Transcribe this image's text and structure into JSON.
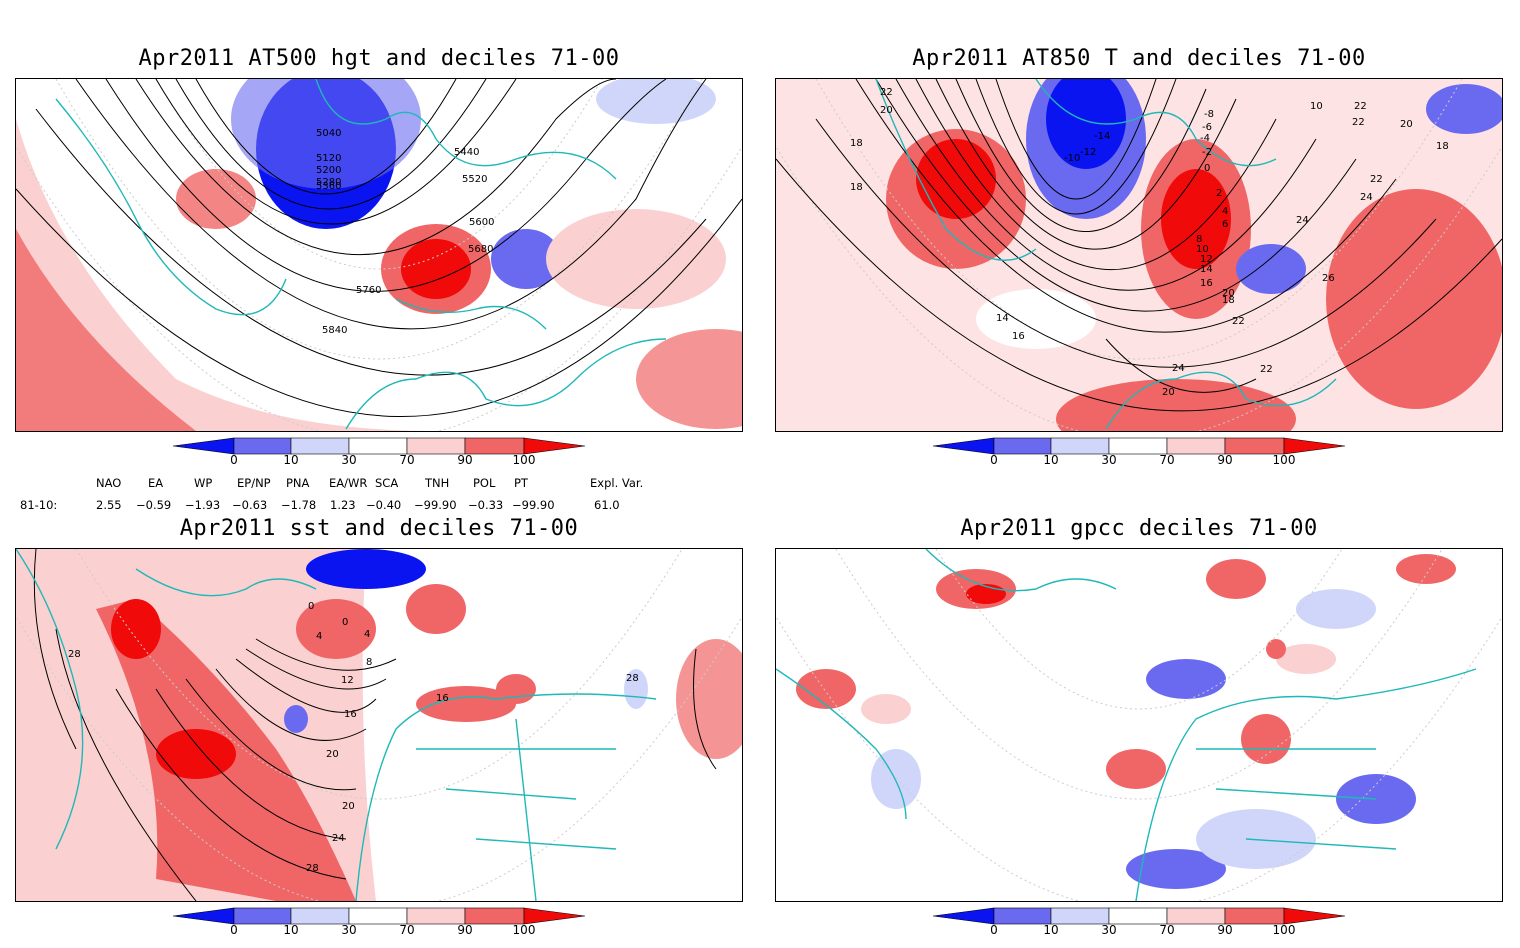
{
  "panels": [
    {
      "title": "Apr2011 AT500 hgt and deciles 71-00",
      "contour_labels": [
        "5040",
        "5120",
        "5200",
        "5280",
        "5360",
        "5440",
        "5520",
        "5600",
        "5680",
        "5760",
        "5840"
      ]
    },
    {
      "title": "Apr2011 AT850 T and deciles 71-00",
      "contour_labels": [
        "22",
        "20",
        "18",
        "18",
        "-10",
        "-12",
        "-14",
        "-8",
        "-6",
        "-4",
        "-2",
        "0",
        "2",
        "4",
        "6",
        "8",
        "10",
        "12",
        "14",
        "16",
        "18",
        "20",
        "22",
        "24",
        "26",
        "10",
        "22",
        "22",
        "20",
        "18",
        "22",
        "24",
        "14",
        "16",
        "24",
        "22",
        "20"
      ]
    },
    {
      "title": "Apr2011 sst and deciles 71-00",
      "contour_labels": [
        "28",
        "0",
        "4",
        "0",
        "4",
        "8",
        "12",
        "16",
        "20",
        "20",
        "24",
        "28",
        "16",
        "28"
      ]
    },
    {
      "title": "Apr2011 gpcc deciles 71-00",
      "contour_labels": []
    }
  ],
  "colorbar": {
    "ticks": [
      "0",
      "10",
      "30",
      "70",
      "90",
      "100"
    ],
    "colors": [
      "#0a14f0",
      "#6a6af0",
      "#d0d6fa",
      "#ffffff",
      "#fbd0d0",
      "#f06666",
      "#f00a0a"
    ]
  },
  "indices": {
    "headers": [
      "NAO",
      "EA",
      "WP",
      "EP/NP",
      "PNA",
      "EA/WR",
      "SCA",
      "TNH",
      "POL",
      "PT",
      "Expl. Var."
    ],
    "row_label": "81-10:",
    "values": [
      "2.55",
      "−0.59",
      "−1.93",
      "−0.63",
      "−1.78",
      "1.23",
      "−0.40",
      "−99.90",
      "−0.33",
      "−99.90",
      "61.0"
    ]
  }
}
